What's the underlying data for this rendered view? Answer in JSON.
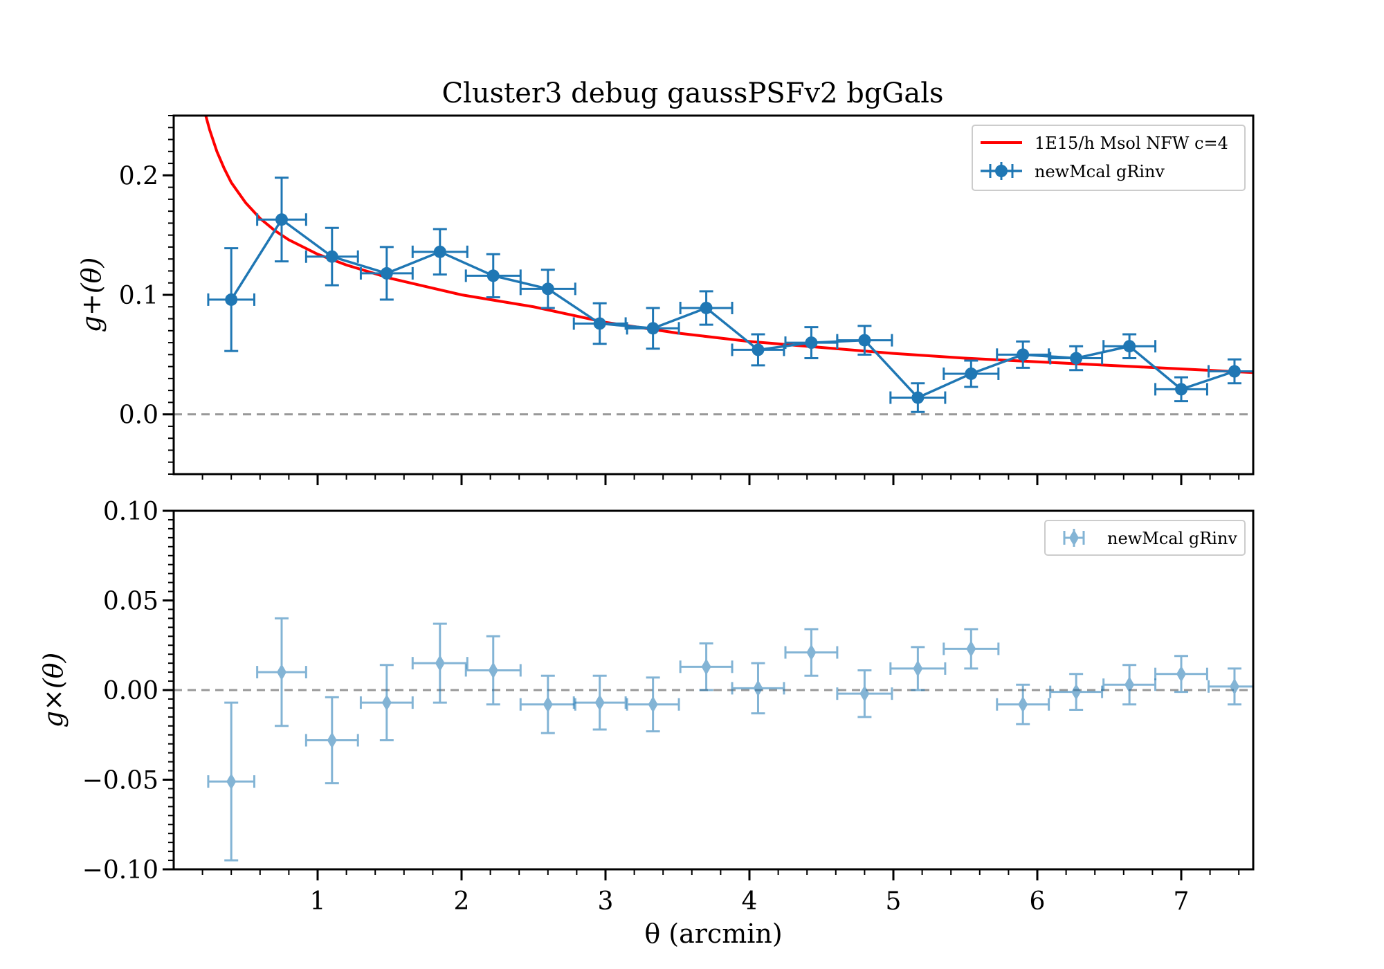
{
  "title": "Cluster3 debug gaussPSFv2 bgGals",
  "xlabel": "θ (arcmin)",
  "colors": {
    "data": "#1f77b4",
    "model": "#ff0000",
    "zero": "#999999"
  },
  "chart_data": [
    {
      "type": "scatter",
      "panel": "top",
      "ylabel": "g+(θ)",
      "xlim": [
        0.0,
        7.5
      ],
      "ylim": [
        -0.05,
        0.25
      ],
      "yticks": [
        0.0,
        0.1,
        0.2
      ],
      "yticklabels": [
        "0.0",
        "0.1",
        "0.2"
      ],
      "legend": "top-right",
      "zero_line": true,
      "model": {
        "name": "1E15/h Msol NFW c=4",
        "x": [
          0.2,
          0.25,
          0.3,
          0.35,
          0.4,
          0.5,
          0.6,
          0.7,
          0.8,
          1.0,
          1.2,
          1.5,
          2.0,
          2.5,
          3.0,
          3.5,
          4.0,
          4.5,
          5.0,
          5.5,
          6.0,
          6.5,
          7.0,
          7.5
        ],
        "y": [
          0.26,
          0.238,
          0.22,
          0.206,
          0.194,
          0.177,
          0.164,
          0.154,
          0.146,
          0.134,
          0.125,
          0.114,
          0.1,
          0.09,
          0.077,
          0.068,
          0.061,
          0.056,
          0.051,
          0.047,
          0.044,
          0.041,
          0.038,
          0.035
        ]
      },
      "series": [
        {
          "name": "newMcal gRinv",
          "marker": "circle",
          "x": [
            0.4,
            0.75,
            1.1,
            1.48,
            1.85,
            2.22,
            2.6,
            2.96,
            3.33,
            3.7,
            4.06,
            4.43,
            4.8,
            5.17,
            5.54,
            5.9,
            6.27,
            6.64,
            7.0,
            7.37
          ],
          "y": [
            0.096,
            0.163,
            0.132,
            0.118,
            0.136,
            0.116,
            0.105,
            0.076,
            0.072,
            0.089,
            0.054,
            0.06,
            0.062,
            0.014,
            0.034,
            0.05,
            0.047,
            0.057,
            0.021,
            0.036
          ],
          "yerr": [
            0.043,
            0.035,
            0.024,
            0.022,
            0.019,
            0.018,
            0.016,
            0.017,
            0.017,
            0.014,
            0.013,
            0.013,
            0.012,
            0.012,
            0.011,
            0.011,
            0.01,
            0.01,
            0.01,
            0.01
          ],
          "xerr": [
            0.16,
            0.17,
            0.18,
            0.18,
            0.19,
            0.19,
            0.19,
            0.18,
            0.18,
            0.18,
            0.18,
            0.18,
            0.19,
            0.19,
            0.19,
            0.18,
            0.18,
            0.18,
            0.18,
            0.18
          ]
        }
      ]
    },
    {
      "type": "scatter",
      "panel": "bottom",
      "ylabel": "g×(θ)",
      "xlim": [
        0.0,
        7.5
      ],
      "ylim": [
        -0.1,
        0.1
      ],
      "yticks": [
        -0.1,
        -0.05,
        0.0,
        0.05,
        0.1
      ],
      "yticklabels": [
        "−0.10",
        "−0.05",
        "0.00",
        "0.05",
        "0.10"
      ],
      "xticks": [
        1,
        2,
        3,
        4,
        5,
        6,
        7
      ],
      "xticklabels": [
        "1",
        "2",
        "3",
        "4",
        "5",
        "6",
        "7"
      ],
      "legend": "top-right",
      "zero_line": true,
      "series": [
        {
          "name": "newMcal gRinv",
          "marker": "diamond",
          "x": [
            0.4,
            0.75,
            1.1,
            1.48,
            1.85,
            2.22,
            2.6,
            2.96,
            3.33,
            3.7,
            4.06,
            4.43,
            4.8,
            5.17,
            5.54,
            5.9,
            6.27,
            6.64,
            7.0,
            7.37
          ],
          "y": [
            -0.051,
            0.01,
            -0.028,
            -0.007,
            0.015,
            0.011,
            -0.008,
            -0.007,
            -0.008,
            0.013,
            0.001,
            0.021,
            -0.002,
            0.012,
            0.023,
            -0.008,
            -0.001,
            0.003,
            0.009,
            0.002
          ],
          "yerr": [
            0.044,
            0.03,
            0.024,
            0.021,
            0.022,
            0.019,
            0.016,
            0.015,
            0.015,
            0.013,
            0.014,
            0.013,
            0.013,
            0.012,
            0.011,
            0.011,
            0.01,
            0.011,
            0.01,
            0.01
          ],
          "xerr": [
            0.16,
            0.17,
            0.18,
            0.18,
            0.19,
            0.19,
            0.19,
            0.18,
            0.18,
            0.18,
            0.18,
            0.18,
            0.19,
            0.19,
            0.19,
            0.18,
            0.18,
            0.18,
            0.18,
            0.18
          ]
        }
      ]
    }
  ]
}
